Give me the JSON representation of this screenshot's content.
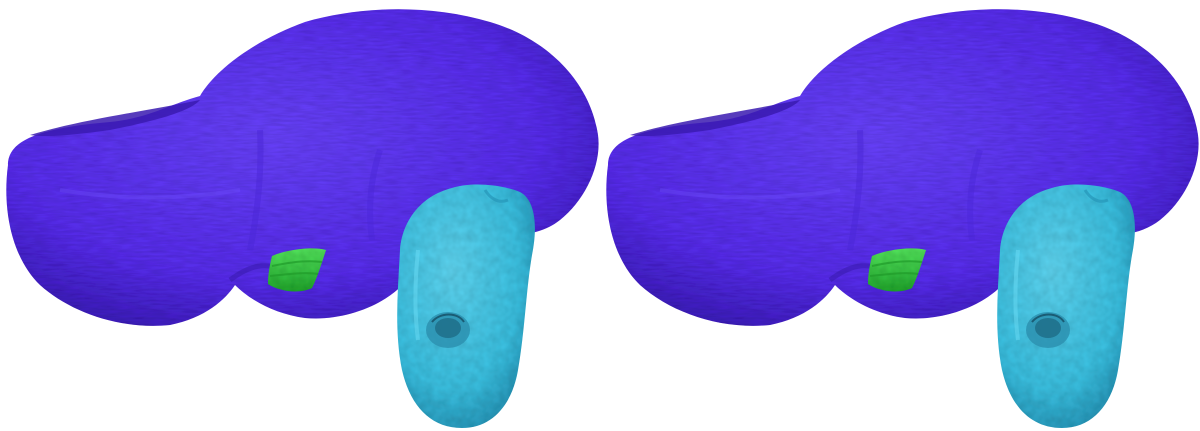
{
  "colors": {
    "background": "#ffffff",
    "main_structure": "#5b2ef0",
    "main_structure_shade": "#3f1fc0",
    "main_structure_light": "#6b45ff",
    "small_structure": "#3fdc4a",
    "small_structure_shade": "#22a82e",
    "side_structure": "#3cc3e4",
    "side_structure_shade": "#2795b8",
    "side_structure_light": "#5fd6f2"
  },
  "panels": [
    {
      "id": "left-view"
    },
    {
      "id": "right-view"
    }
  ]
}
